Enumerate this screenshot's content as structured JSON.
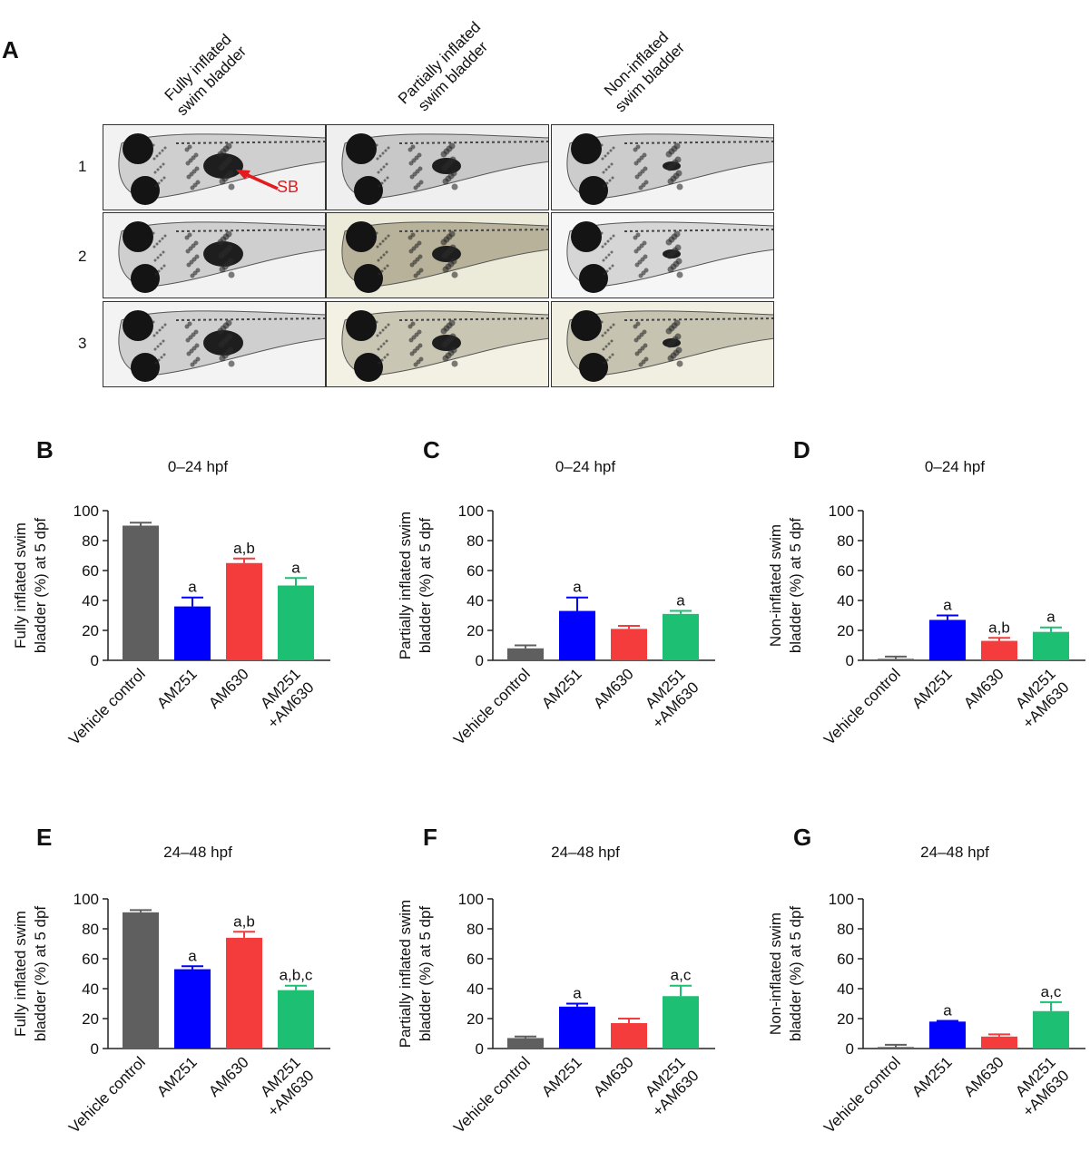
{
  "panel_a": {
    "letter": "A",
    "column_headers": [
      [
        "Fully inflated",
        "swim bladder"
      ],
      [
        "Partially inflated",
        "swim bladder"
      ],
      [
        "Non-inflated",
        "swim bladder"
      ]
    ],
    "row_labels": [
      "1",
      "2",
      "3"
    ],
    "arrow_label": "SB",
    "arrow_color": "#e41a1c"
  },
  "colors": {
    "Vehicle control": "#5f5f5f",
    "AM251": "#0000ff",
    "AM630": "#f43c3c",
    "AM251+AM630": "#1dbf73"
  },
  "chart_data": [
    {
      "id": "B",
      "letter": "B",
      "type": "bar",
      "title": "0–24 hpf",
      "ylabel": [
        "Fully inflated swim",
        "bladder (%) at 5 dpf"
      ],
      "categories": [
        [
          "Vehicle control"
        ],
        [
          "AM251"
        ],
        [
          "AM630"
        ],
        [
          "AM251",
          "+AM630"
        ]
      ],
      "values": [
        90,
        36,
        65,
        50
      ],
      "errors": [
        2,
        6,
        3,
        5
      ],
      "annotations": [
        "",
        "a",
        "a,b",
        "a"
      ],
      "ylim": [
        0,
        100
      ],
      "yticks": [
        0,
        20,
        40,
        60,
        80,
        100
      ]
    },
    {
      "id": "C",
      "letter": "C",
      "type": "bar",
      "title": "0–24 hpf",
      "ylabel": [
        "Partially inflated swim",
        "bladder (%) at 5 dpf"
      ],
      "categories": [
        [
          "Vehicle control"
        ],
        [
          "AM251"
        ],
        [
          "AM630"
        ],
        [
          "AM251",
          "+AM630"
        ]
      ],
      "values": [
        8,
        33,
        21,
        31
      ],
      "errors": [
        2,
        9,
        2,
        2
      ],
      "annotations": [
        "",
        "a",
        "",
        "a"
      ],
      "ylim": [
        0,
        100
      ],
      "yticks": [
        0,
        20,
        40,
        60,
        80,
        100
      ]
    },
    {
      "id": "D",
      "letter": "D",
      "type": "bar",
      "title": "0–24 hpf",
      "ylabel": [
        "Non-inflated swim",
        "bladder (%) at 5 dpf"
      ],
      "categories": [
        [
          "Vehicle control"
        ],
        [
          "AM251"
        ],
        [
          "AM630"
        ],
        [
          "AM251",
          "+AM630"
        ]
      ],
      "values": [
        1,
        27,
        13,
        19
      ],
      "errors": [
        1.5,
        3,
        2,
        3
      ],
      "annotations": [
        "",
        "a",
        "a,b",
        "a"
      ],
      "ylim": [
        0,
        100
      ],
      "yticks": [
        0,
        20,
        40,
        60,
        80,
        100
      ]
    },
    {
      "id": "E",
      "letter": "E",
      "type": "bar",
      "title": "24–48 hpf",
      "ylabel": [
        "Fully inflated swim",
        "bladder (%) at 5 dpf"
      ],
      "categories": [
        [
          "Vehicle control"
        ],
        [
          "AM251"
        ],
        [
          "AM630"
        ],
        [
          "AM251",
          "+AM630"
        ]
      ],
      "values": [
        91,
        53,
        74,
        39
      ],
      "errors": [
        1.5,
        2,
        4,
        3
      ],
      "annotations": [
        "",
        "a",
        "a,b",
        "a,b,c"
      ],
      "ylim": [
        0,
        100
      ],
      "yticks": [
        0,
        20,
        40,
        60,
        80,
        100
      ]
    },
    {
      "id": "F",
      "letter": "F",
      "type": "bar",
      "title": "24–48 hpf",
      "ylabel": [
        "Partially inflated swim",
        "bladder (%) at 5 dpf"
      ],
      "categories": [
        [
          "Vehicle control"
        ],
        [
          "AM251"
        ],
        [
          "AM630"
        ],
        [
          "AM251",
          "+AM630"
        ]
      ],
      "values": [
        7,
        28,
        17,
        35
      ],
      "errors": [
        1,
        2,
        3,
        7
      ],
      "annotations": [
        "",
        "a",
        "",
        "a,c"
      ],
      "ylim": [
        0,
        100
      ],
      "yticks": [
        0,
        20,
        40,
        60,
        80,
        100
      ]
    },
    {
      "id": "G",
      "letter": "G",
      "type": "bar",
      "title": "24–48 hpf",
      "ylabel": [
        "Non-inflated swim",
        "bladder (%) at 5 dpf"
      ],
      "categories": [
        [
          "Vehicle control"
        ],
        [
          "AM251"
        ],
        [
          "AM630"
        ],
        [
          "AM251",
          "+AM630"
        ]
      ],
      "values": [
        1,
        18,
        8,
        25
      ],
      "errors": [
        1.5,
        0.5,
        1.5,
        6
      ],
      "annotations": [
        "",
        "a",
        "",
        "a,c"
      ],
      "ylim": [
        0,
        100
      ],
      "yticks": [
        0,
        20,
        40,
        60,
        80,
        100
      ]
    }
  ]
}
